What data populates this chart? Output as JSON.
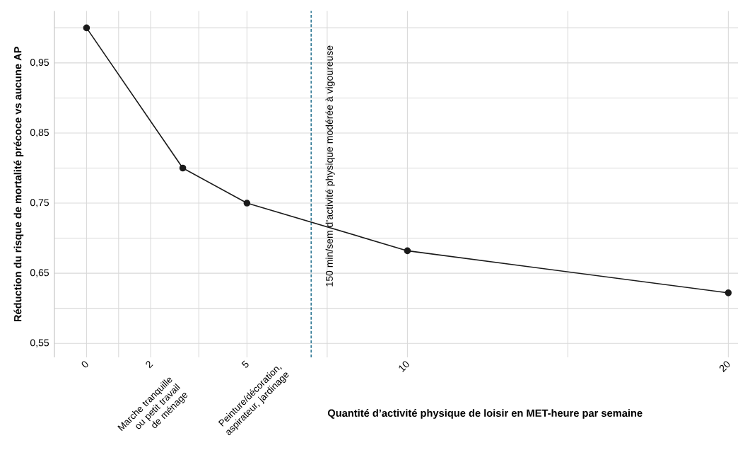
{
  "chart_data": {
    "type": "line",
    "xlabel": "Quantité d’activité physique de loisir en MET-heure par semaine",
    "ylabel": "Réduction du risque de mortalité précoce vs aucune AP",
    "x": [
      0,
      3,
      5,
      10,
      20
    ],
    "series": [
      {
        "color": "#1a1a1a",
        "values": [
          1.0,
          0.8,
          0.75,
          0.682,
          0.622
        ]
      }
    ],
    "marker": "circle",
    "line_style": "solid",
    "grid": true,
    "xlim": [
      -1,
      20.3
    ],
    "ylim": [
      0.53,
      1.024
    ],
    "xticks": [
      0,
      {
        "value": 1,
        "label": null
      },
      2,
      {
        "value": 3.5,
        "label": null
      },
      5,
      {
        "value": 7.5,
        "label": null
      },
      10,
      {
        "value": 15,
        "label": null
      },
      20
    ],
    "yticks": [
      {
        "value": 0.55,
        "label": "0,55"
      },
      {
        "value": 0.6,
        "label": null
      },
      {
        "value": 0.65,
        "label": "0,65"
      },
      {
        "value": 0.7,
        "label": null
      },
      {
        "value": 0.75,
        "label": "0,75"
      },
      {
        "value": 0.8,
        "label": null
      },
      {
        "value": 0.85,
        "label": "0,85"
      },
      {
        "value": 0.9,
        "label": null
      },
      {
        "value": 0.95,
        "label": "0,95"
      },
      {
        "value": 1.0,
        "label": null
      }
    ],
    "ref_lines": [
      {
        "axis": "x",
        "value": 7,
        "label": "150 min/sem d’activité physique modérée à vigoureuse",
        "color": "#1f6e8c",
        "line_style": "dashed"
      }
    ],
    "annotations": [
      "Marche tranquille ou petit travail de ménage",
      "Peinture/décoration, aspirateur, jardinage"
    ]
  }
}
